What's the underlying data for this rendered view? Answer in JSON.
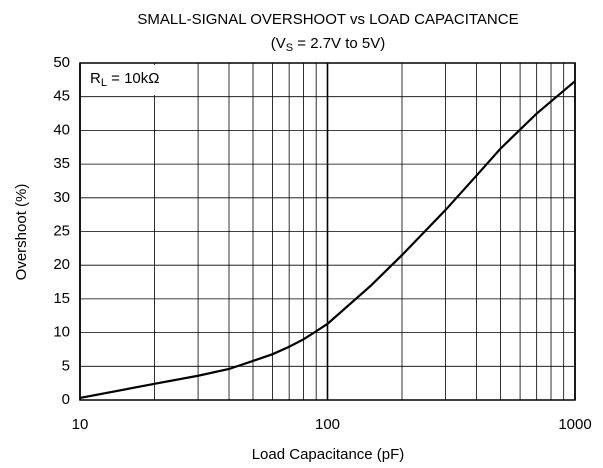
{
  "chart_data": {
    "type": "line",
    "title": "SMALL-SIGNAL OVERSHOOT vs LOAD CAPACITANCE",
    "subtitle_parts": [
      "(V",
      "S",
      " = 2.7V to 5V)"
    ],
    "annotation_parts": [
      "R",
      "L",
      " = 10kΩ"
    ],
    "x_label": "Load Capacitance (pF)",
    "y_label": "Overshoot (%)",
    "x_scale": "log",
    "xlim": [
      10,
      1000
    ],
    "xticks": [
      10,
      100,
      1000
    ],
    "x_minor_grid": [
      20,
      30,
      40,
      50,
      60,
      70,
      80,
      90,
      200,
      300,
      400,
      500,
      600,
      700,
      800,
      900
    ],
    "ylim": [
      0,
      50
    ],
    "yticks": [
      0,
      5,
      10,
      15,
      20,
      25,
      30,
      35,
      40,
      45,
      50
    ],
    "grid": true,
    "series": [
      {
        "color": "#000000",
        "x": [
          10,
          20,
          30,
          40,
          50,
          60,
          70,
          80,
          90,
          100,
          150,
          200,
          300,
          400,
          500,
          700,
          1000
        ],
        "values": [
          0.3,
          2.4,
          3.6,
          4.6,
          5.8,
          6.8,
          7.9,
          9,
          10.2,
          11.3,
          17,
          21.5,
          28.2,
          33.3,
          37.3,
          42.5,
          47.3
        ]
      }
    ]
  }
}
